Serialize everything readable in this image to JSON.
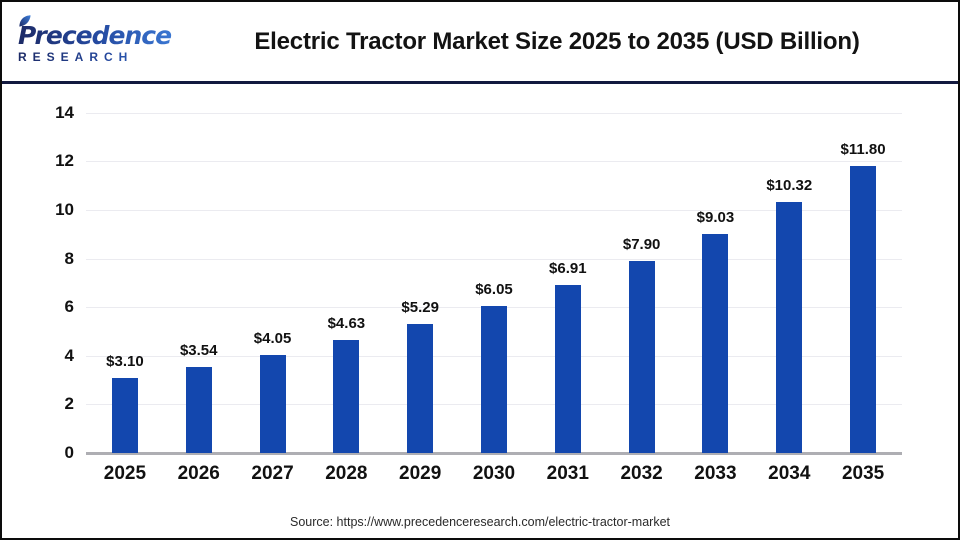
{
  "header": {
    "logo": {
      "line1": "Precedence",
      "line2": "RESEARCH",
      "leaf_icon": "leaf-icon"
    }
  },
  "chart_data": {
    "type": "bar",
    "title": "Electric Tractor Market Size 2025 to 2035 (USD Billion)",
    "categories": [
      "2025",
      "2026",
      "2027",
      "2028",
      "2029",
      "2030",
      "2031",
      "2032",
      "2033",
      "2034",
      "2035"
    ],
    "values": [
      3.1,
      3.54,
      4.05,
      4.63,
      5.29,
      6.05,
      6.91,
      7.9,
      9.03,
      10.32,
      11.8
    ],
    "value_labels": [
      "$3.10",
      "$3.54",
      "$4.05",
      "$4.63",
      "$5.29",
      "$6.05",
      "$6.91",
      "$7.90",
      "$9.03",
      "$10.32",
      "$11.80"
    ],
    "xlabel": "",
    "ylabel": "",
    "ylim": [
      0,
      14
    ],
    "yticks": [
      0,
      2,
      4,
      6,
      8,
      10,
      12,
      14
    ],
    "grid": "horizontal",
    "legend": "none"
  },
  "footer": {
    "source": "Source: https://www.precedenceresearch.com/electric-tractor-market"
  },
  "colors": {
    "bar": "#1347ae",
    "header_separator": "#12193f",
    "gridline": "#ebebf0",
    "axis_line": "#aeaeb3",
    "logo_dark": "#1c2a66",
    "logo_light": "#3d7edb"
  }
}
